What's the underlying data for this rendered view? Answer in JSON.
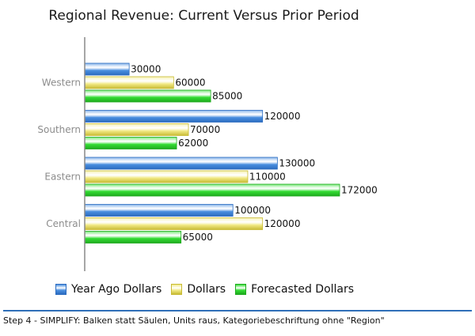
{
  "title": "Regional Revenue: Current Versus Prior Period",
  "caption": "Step 4 - SIMPLIFY: Balken statt Säulen, Units raus, Kategoriebeschriftung ohne \"Region\"",
  "chart_data": {
    "type": "bar",
    "orientation": "horizontal",
    "title": "Regional Revenue: Current Versus Prior Period",
    "categories": [
      "Western",
      "Southern",
      "Eastern",
      "Central"
    ],
    "series": [
      {
        "name": "Year Ago Dollars",
        "values": [
          30000,
          120000,
          130000,
          100000
        ],
        "color": "#4a8fe0",
        "dark": "#2c6cc0"
      },
      {
        "name": "Dollars",
        "values": [
          60000,
          70000,
          110000,
          120000
        ],
        "color": "#f2ea86",
        "dark": "#c8bb35"
      },
      {
        "name": "Forecasted Dollars",
        "values": [
          85000,
          62000,
          172000,
          65000
        ],
        "color": "#33dd33",
        "dark": "#1faa1f"
      }
    ],
    "xlim": [
      0,
      172000
    ],
    "data_labels": true,
    "gridlines": false,
    "legend": "bottom"
  }
}
